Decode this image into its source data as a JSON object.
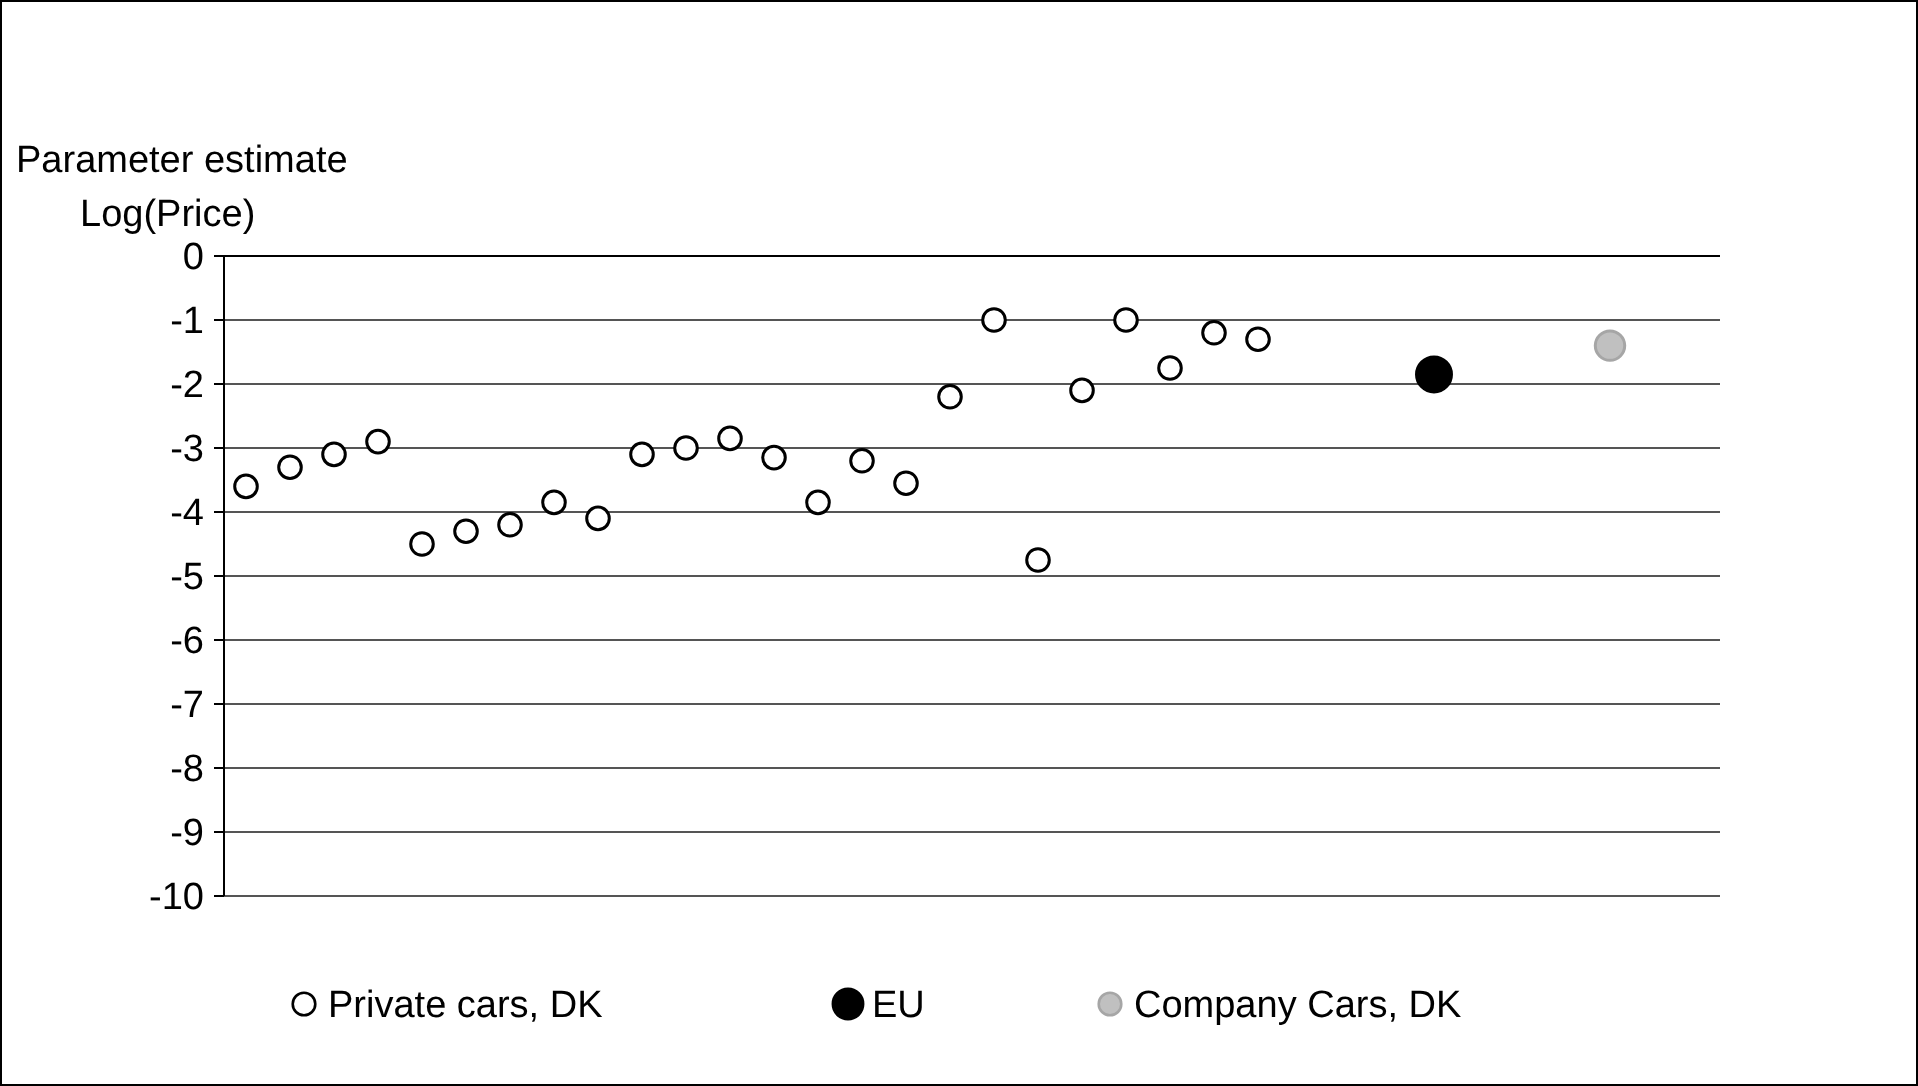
{
  "chart_data": {
    "type": "scatter",
    "title": "Parameter estimate",
    "ylabel": "Log(Price)",
    "categories": [
      null,
      null,
      null,
      null,
      null,
      null,
      null,
      null,
      null,
      null,
      null,
      null,
      null,
      null,
      null,
      null,
      null,
      null,
      null,
      null,
      null,
      null,
      null,
      null,
      null,
      null,
      null,
      null,
      null,
      null,
      null,
      null,
      null,
      null
    ],
    "series": [
      {
        "name": "Private cars, DK",
        "color": "#ffffff",
        "values": [
          -3.6,
          -3.3,
          -3.1,
          -2.9,
          -4.5,
          -4.3,
          -4.2,
          -3.85,
          -4.1,
          -3.1,
          -3.0,
          -2.85,
          -3.15,
          -3.85,
          -3.2,
          -3.55,
          -2.2,
          -1.0,
          -4.75,
          -2.1,
          -1.0,
          -1.75,
          -1.2,
          -1.3,
          null,
          null,
          null,
          null,
          null,
          null,
          null,
          null,
          null,
          null
        ]
      },
      {
        "name": "EU",
        "color": "#000000",
        "values": [
          null,
          null,
          null,
          null,
          null,
          null,
          null,
          null,
          null,
          null,
          null,
          null,
          null,
          null,
          null,
          null,
          null,
          null,
          null,
          null,
          null,
          null,
          null,
          null,
          null,
          null,
          null,
          -1.85,
          null,
          null,
          null,
          null,
          null,
          null
        ]
      },
      {
        "name": "Company Cars, DK",
        "color": "#c0c0c0",
        "values": [
          null,
          null,
          null,
          null,
          null,
          null,
          null,
          null,
          null,
          null,
          null,
          null,
          null,
          null,
          null,
          null,
          null,
          null,
          null,
          null,
          null,
          null,
          null,
          null,
          null,
          null,
          null,
          null,
          null,
          null,
          null,
          -1.4,
          null,
          null
        ]
      }
    ],
    "ylim": [
      -10,
      0
    ],
    "yticks": [
      0,
      -1,
      -2,
      -3,
      -4,
      -5,
      -6,
      -7,
      -8,
      -9,
      -10
    ],
    "grid": "y",
    "legend": "bottom",
    "marker": "circle",
    "tick_labels": "y"
  }
}
